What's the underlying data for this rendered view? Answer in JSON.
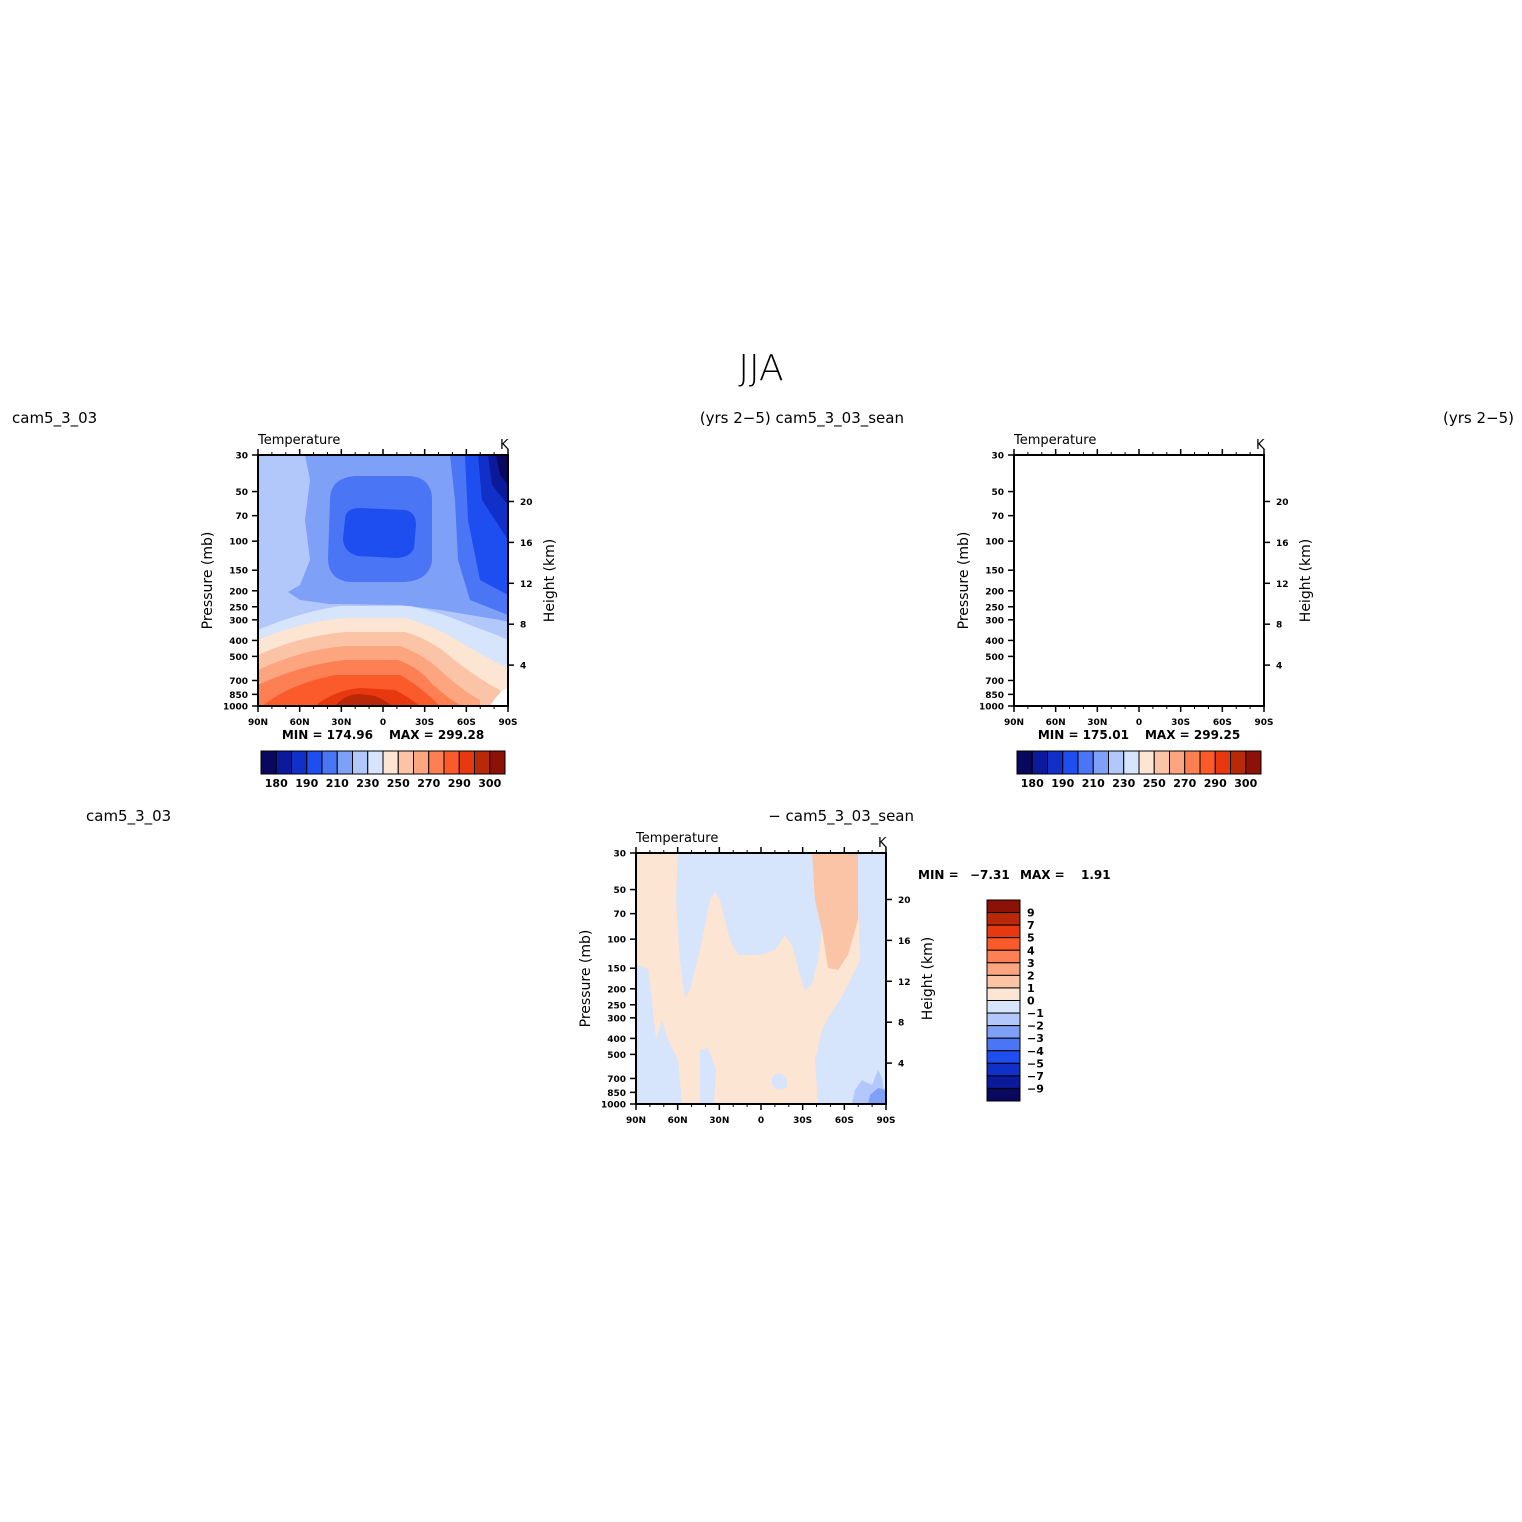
{
  "figure": {
    "main_title": "JJA",
    "panels_left_labels": [
      "cam5_3_03",
      "cam5_3_03",
      "cam5_3_03"
    ],
    "panel1": {
      "left": "cam5_3_03",
      "right": "(yrs 2−5) cam5_3_03_sean"
    },
    "panel2": {
      "left": "",
      "right": "(yrs 2−5)"
    },
    "panel3": {
      "left": "cam5_3_03",
      "right": "− cam5_3_03_sean"
    }
  },
  "chart_data": [
    {
      "type": "heatmap",
      "title": "Temperature",
      "units": "K",
      "left_string": "cam5_3_03",
      "right_string": "(yrs 2−5) cam5_3_03_sean",
      "ylabel": "Pressure (mb)",
      "ylabel_right": "Height (km)",
      "x_ticks": [
        "90N",
        "60N",
        "30N",
        "0",
        "30S",
        "60S",
        "90S"
      ],
      "y_ticks": [
        "30",
        "50",
        "70",
        "100",
        "150",
        "200",
        "250",
        "300",
        "400",
        "500",
        "700",
        "850",
        "1000"
      ],
      "y_ticks_right": [
        "20",
        "16",
        "12",
        "8",
        "4"
      ],
      "min_label": "MIN = 174.96",
      "max_label": "MAX = 299.28",
      "min": 174.96,
      "max": 299.28,
      "colorbar_labels": [
        "180",
        "190",
        "210",
        "230",
        "250",
        "270",
        "290",
        "300"
      ],
      "levels": [
        180,
        185,
        190,
        200,
        210,
        220,
        230,
        240,
        250,
        260,
        270,
        280,
        285,
        290,
        295,
        300
      ]
    },
    {
      "type": "heatmap",
      "title": "Temperature",
      "units": "K",
      "left_string": "",
      "right_string": "(yrs 2−5)",
      "ylabel": "Pressure (mb)",
      "ylabel_right": "Height (km)",
      "x_ticks": [
        "90N",
        "60N",
        "30N",
        "0",
        "30S",
        "60S",
        "90S"
      ],
      "y_ticks": [
        "30",
        "50",
        "70",
        "100",
        "150",
        "200",
        "250",
        "300",
        "400",
        "500",
        "700",
        "850",
        "1000"
      ],
      "y_ticks_right": [
        "20",
        "16",
        "12",
        "8",
        "4"
      ],
      "min_label": "MIN = 175.01",
      "max_label": "MAX = 299.25",
      "min": 175.01,
      "max": 299.25,
      "colorbar_labels": [
        "180",
        "190",
        "210",
        "230",
        "250",
        "270",
        "290",
        "300"
      ],
      "levels": [
        180,
        185,
        190,
        200,
        210,
        220,
        230,
        240,
        250,
        260,
        270,
        280,
        285,
        290,
        295,
        300
      ]
    },
    {
      "type": "heatmap",
      "title": "Temperature",
      "units": "K",
      "left_string": "cam5_3_03",
      "right_string": "− cam5_3_03_sean",
      "ylabel": "Pressure (mb)",
      "ylabel_right": "Height (km)",
      "x_ticks": [
        "90N",
        "60N",
        "30N",
        "0",
        "30S",
        "60S",
        "90S"
      ],
      "y_ticks": [
        "30",
        "50",
        "70",
        "100",
        "150",
        "200",
        "250",
        "300",
        "400",
        "500",
        "700",
        "850",
        "1000"
      ],
      "y_ticks_right": [
        "20",
        "16",
        "12",
        "8",
        "4"
      ],
      "min_label": "MIN =",
      "min_value": "−7.31",
      "max_label": "MAX =",
      "max_value": "1.91",
      "min": -7.31,
      "max": 1.91,
      "colorbar_labels": [
        "9",
        "7",
        "5",
        "4",
        "3",
        "2",
        "1",
        "0",
        "−1",
        "−2",
        "−3",
        "−4",
        "−5",
        "−7",
        "−9"
      ],
      "levels": [
        -9,
        -7,
        -5,
        -4,
        -3,
        -2,
        -1,
        0,
        1,
        2,
        3,
        4,
        5,
        7,
        9
      ]
    }
  ],
  "colors": {
    "temp_palette": [
      "#08085e",
      "#0a1a9a",
      "#1030c8",
      "#1e4ef0",
      "#4a76f5",
      "#7ea0f7",
      "#b3c8fa",
      "#d6e4fc",
      "#fde5d3",
      "#fcc4a6",
      "#fca57f",
      "#fc8053",
      "#fb5a2a",
      "#e8380f",
      "#b92808",
      "#8c1208"
    ],
    "diff_palette": [
      "#8c1208",
      "#b92808",
      "#e8380f",
      "#fb5a2a",
      "#fc8053",
      "#fca57f",
      "#fcc4a6",
      "#fde5d3",
      "#d6e4fc",
      "#b3c8fa",
      "#7ea0f7",
      "#4a76f5",
      "#1e4ef0",
      "#1030c8",
      "#0a1a9a",
      "#08085e"
    ]
  }
}
